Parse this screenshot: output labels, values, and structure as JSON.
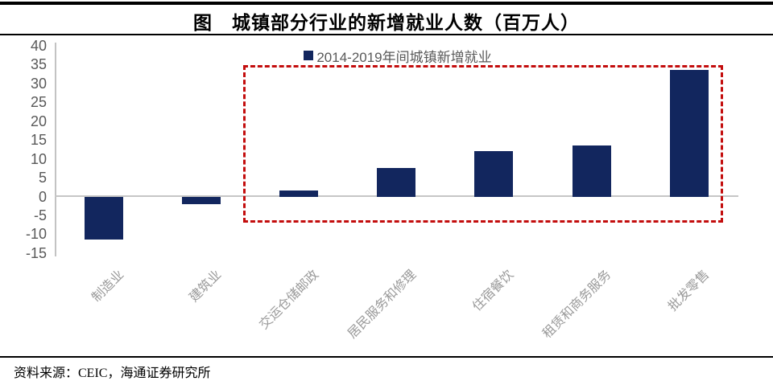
{
  "header": {
    "title": "图　城镇部分行业的新增就业人数（百万人）"
  },
  "legend": {
    "label": "2014-2019年间城镇新增就业"
  },
  "footer": {
    "source": "资料来源：CEIC，海通证券研究所"
  },
  "colors": {
    "bar": "#12265e",
    "legend_marker": "#12265e",
    "axis_text": "#595959",
    "category_text": "#9a9a9a",
    "axis_line": "#c6c6c6",
    "highlight_box": "#c30d0d",
    "rule": "#000000"
  },
  "chart_data": {
    "type": "bar",
    "title": "图　城镇部分行业的新增就业人数（百万人）",
    "series_name": "2014-2019年间城镇新增就业",
    "categories": [
      "制造业",
      "建筑业",
      "交运仓储邮政",
      "居民服务和修理",
      "住宿餐饮",
      "租赁和商务服务",
      "批发零售"
    ],
    "values": [
      -11.5,
      -2,
      1.5,
      7.5,
      12,
      13.5,
      33.5
    ],
    "xlabel": "",
    "ylabel": "",
    "ylim": [
      -15,
      40
    ],
    "yticks": [
      40,
      35,
      30,
      25,
      20,
      15,
      10,
      5,
      0,
      -5,
      -10,
      -15
    ],
    "grid": false,
    "legend_position": "top-center",
    "highlight_box": {
      "style": "red-dashed-rectangle",
      "covers_categories": [
        "交运仓储邮政",
        "居民服务和修理",
        "住宿餐饮",
        "租赁和商务服务",
        "批发零售"
      ]
    },
    "source": "资料来源：CEIC，海通证券研究所"
  }
}
